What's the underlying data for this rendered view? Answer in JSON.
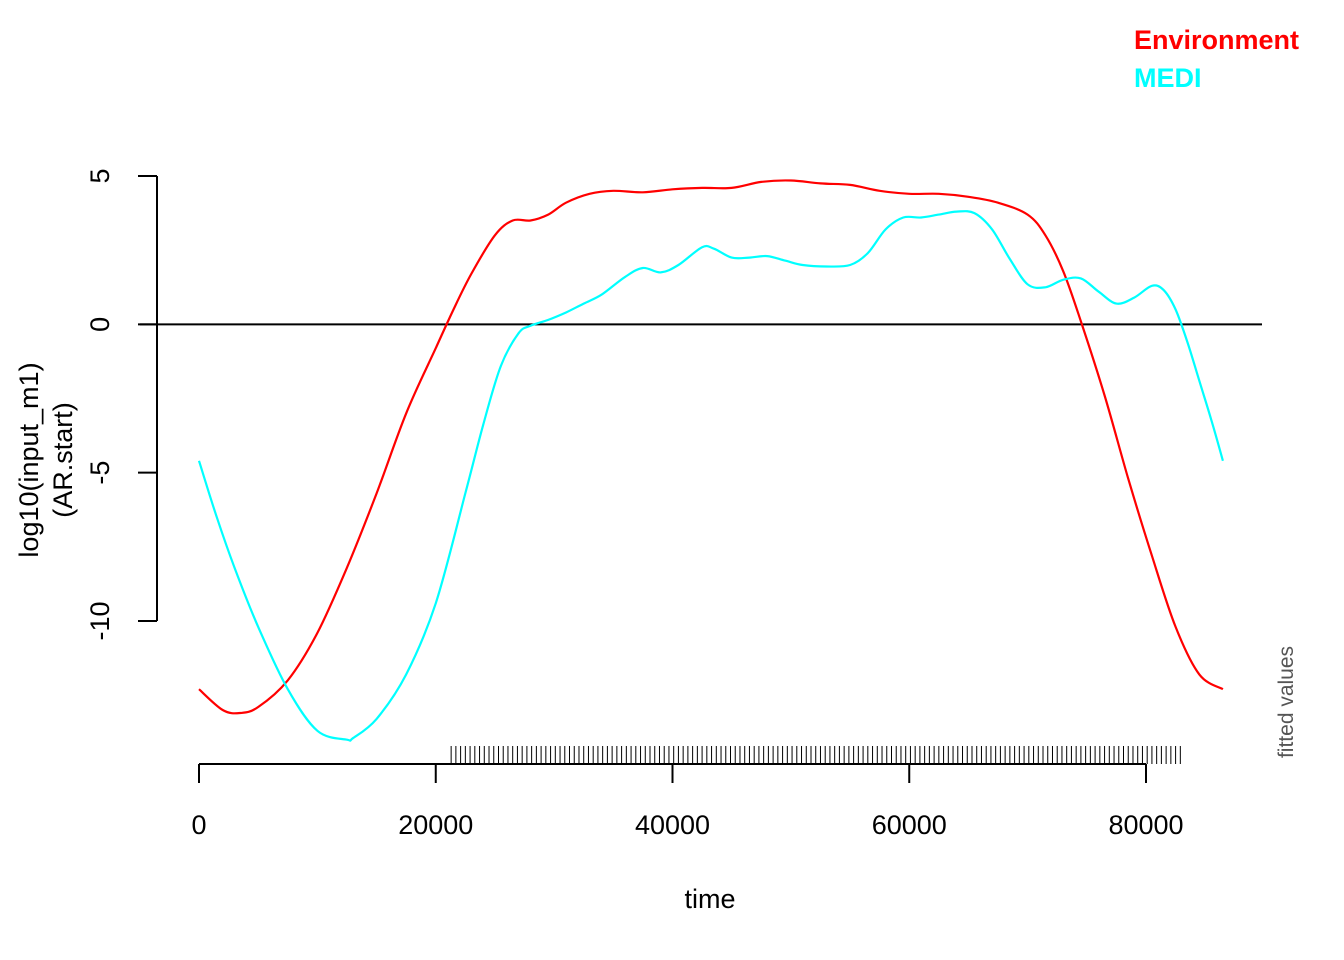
{
  "chart_data": {
    "type": "line",
    "xlabel": "time",
    "ylabel": [
      "log10(input_m1)",
      "(AR.start)"
    ],
    "side_note": "fitted values",
    "xlim": [
      0,
      90000
    ],
    "ylim": [
      -14,
      5
    ],
    "x_ticks": [
      0,
      20000,
      40000,
      60000,
      80000
    ],
    "y_ticks": [
      5,
      0,
      -5,
      -10
    ],
    "hline": 0,
    "series": [
      {
        "name": "Environment",
        "color": "#ff0000",
        "x": [
          0,
          2000,
          3500,
          5000,
          7500,
          10000,
          12500,
          15000,
          17500,
          20000,
          21500,
          23000,
          25000,
          26500,
          28000,
          29500,
          31000,
          33000,
          35000,
          37500,
          40000,
          42500,
          45000,
          47500,
          50000,
          52500,
          55000,
          57500,
          60000,
          62500,
          65000,
          67500,
          70000,
          71500,
          73000,
          74500,
          76500,
          78500,
          80500,
          82500,
          84500,
          86500
        ],
        "values": [
          -12.3,
          -13.0,
          -13.1,
          -12.9,
          -12.0,
          -10.4,
          -8.2,
          -5.7,
          -3.0,
          -0.8,
          0.5,
          1.7,
          3.0,
          3.5,
          3.5,
          3.7,
          4.1,
          4.4,
          4.5,
          4.45,
          4.55,
          4.6,
          4.6,
          4.8,
          4.85,
          4.75,
          4.7,
          4.5,
          4.4,
          4.4,
          4.3,
          4.1,
          3.7,
          3.0,
          1.8,
          0.1,
          -2.4,
          -5.2,
          -7.8,
          -10.2,
          -11.8,
          -12.3
        ]
      },
      {
        "name": "MEDI",
        "color": "#00ffff",
        "x": [
          0,
          1500,
          3000,
          5000,
          7500,
          10000,
          12500,
          13000,
          15000,
          17500,
          20000,
          22500,
          24000,
          25500,
          27000,
          28000,
          29500,
          31000,
          32500,
          34000,
          36000,
          37500,
          39000,
          40500,
          42500,
          43500,
          45000,
          46500,
          48000,
          49500,
          51000,
          53000,
          55000,
          56500,
          58000,
          59500,
          61000,
          62500,
          64000,
          65500,
          67000,
          68500,
          70000,
          71500,
          73000,
          74500,
          76000,
          77500,
          79000,
          80500,
          81500,
          82500,
          83500,
          84500,
          85500,
          86500
        ],
        "values": [
          -4.6,
          -6.5,
          -8.2,
          -10.2,
          -12.3,
          -13.7,
          -14.0,
          -13.95,
          -13.3,
          -11.8,
          -9.4,
          -5.7,
          -3.4,
          -1.4,
          -0.3,
          -0.05,
          0.15,
          0.4,
          0.7,
          1.0,
          1.6,
          1.9,
          1.75,
          2.0,
          2.6,
          2.55,
          2.25,
          2.25,
          2.3,
          2.15,
          2.0,
          1.95,
          2.0,
          2.4,
          3.2,
          3.6,
          3.6,
          3.7,
          3.8,
          3.75,
          3.2,
          2.2,
          1.35,
          1.25,
          1.5,
          1.55,
          1.1,
          0.7,
          0.9,
          1.3,
          1.15,
          0.5,
          -0.6,
          -1.9,
          -3.2,
          -4.6
        ]
      }
    ],
    "rug": {
      "start": 21300,
      "end": 83000,
      "step": 400
    }
  }
}
